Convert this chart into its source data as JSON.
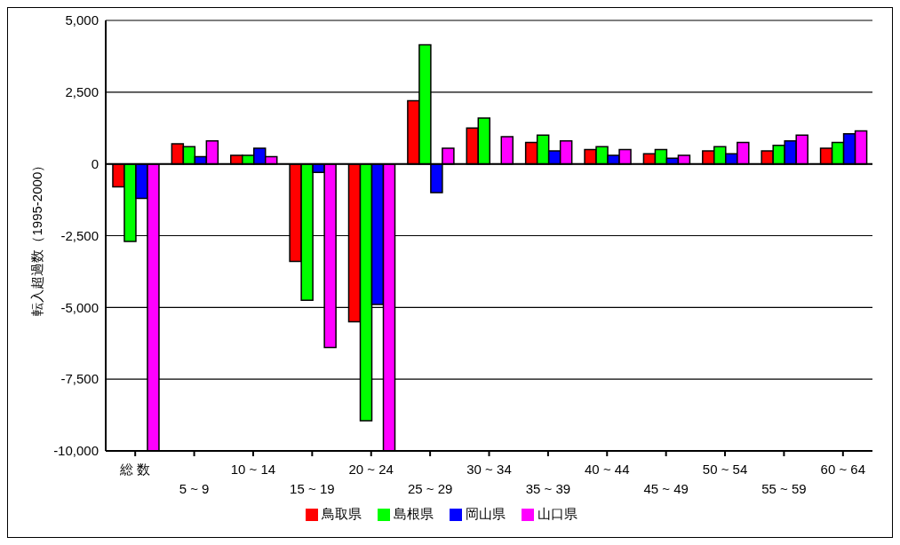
{
  "chart_data": {
    "type": "bar",
    "ylabel": "転入超過数（1995-2000）",
    "categories": [
      "総 数",
      "5 ~ 9",
      "10 ~ 14",
      "15 ~ 19",
      "20 ~ 24",
      "25 ~ 29",
      "30 ~ 34",
      "35 ~ 39",
      "40 ~ 44",
      "45 ~ 49",
      "50 ~ 54",
      "55 ~ 59",
      "60 ~ 64"
    ],
    "series": [
      {
        "name": "鳥取県",
        "color": "#ff0000",
        "values": [
          -800,
          700,
          300,
          -3400,
          -5500,
          2200,
          1250,
          750,
          500,
          350,
          450,
          450,
          550
        ]
      },
      {
        "name": "島根県",
        "color": "#00ff00",
        "values": [
          -2700,
          600,
          300,
          -4750,
          -8950,
          4150,
          1600,
          1000,
          600,
          500,
          600,
          650,
          750
        ]
      },
      {
        "name": "岡山県",
        "color": "#0000ff",
        "values": [
          -1200,
          250,
          550,
          -300,
          -4900,
          -1000,
          null,
          450,
          300,
          200,
          350,
          800,
          1050
        ]
      },
      {
        "name": "山口県",
        "color": "#ff00ff",
        "values": [
          -10000,
          800,
          250,
          -6400,
          -10000,
          550,
          950,
          800,
          500,
          300,
          750,
          1000,
          1150
        ]
      }
    ],
    "ylim": [
      -10000,
      5000
    ],
    "yticks": [
      {
        "value": -10000,
        "label": "-10,000"
      },
      {
        "value": -7500,
        "label": "-7,500"
      },
      {
        "value": -5000,
        "label": "-5,000"
      },
      {
        "value": -2500,
        "label": "-2,500"
      },
      0,
      {
        "value": 2500,
        "label": "2,500"
      },
      {
        "value": 5000,
        "label": "5,000"
      }
    ],
    "grid": "y",
    "legend": "bottom"
  }
}
